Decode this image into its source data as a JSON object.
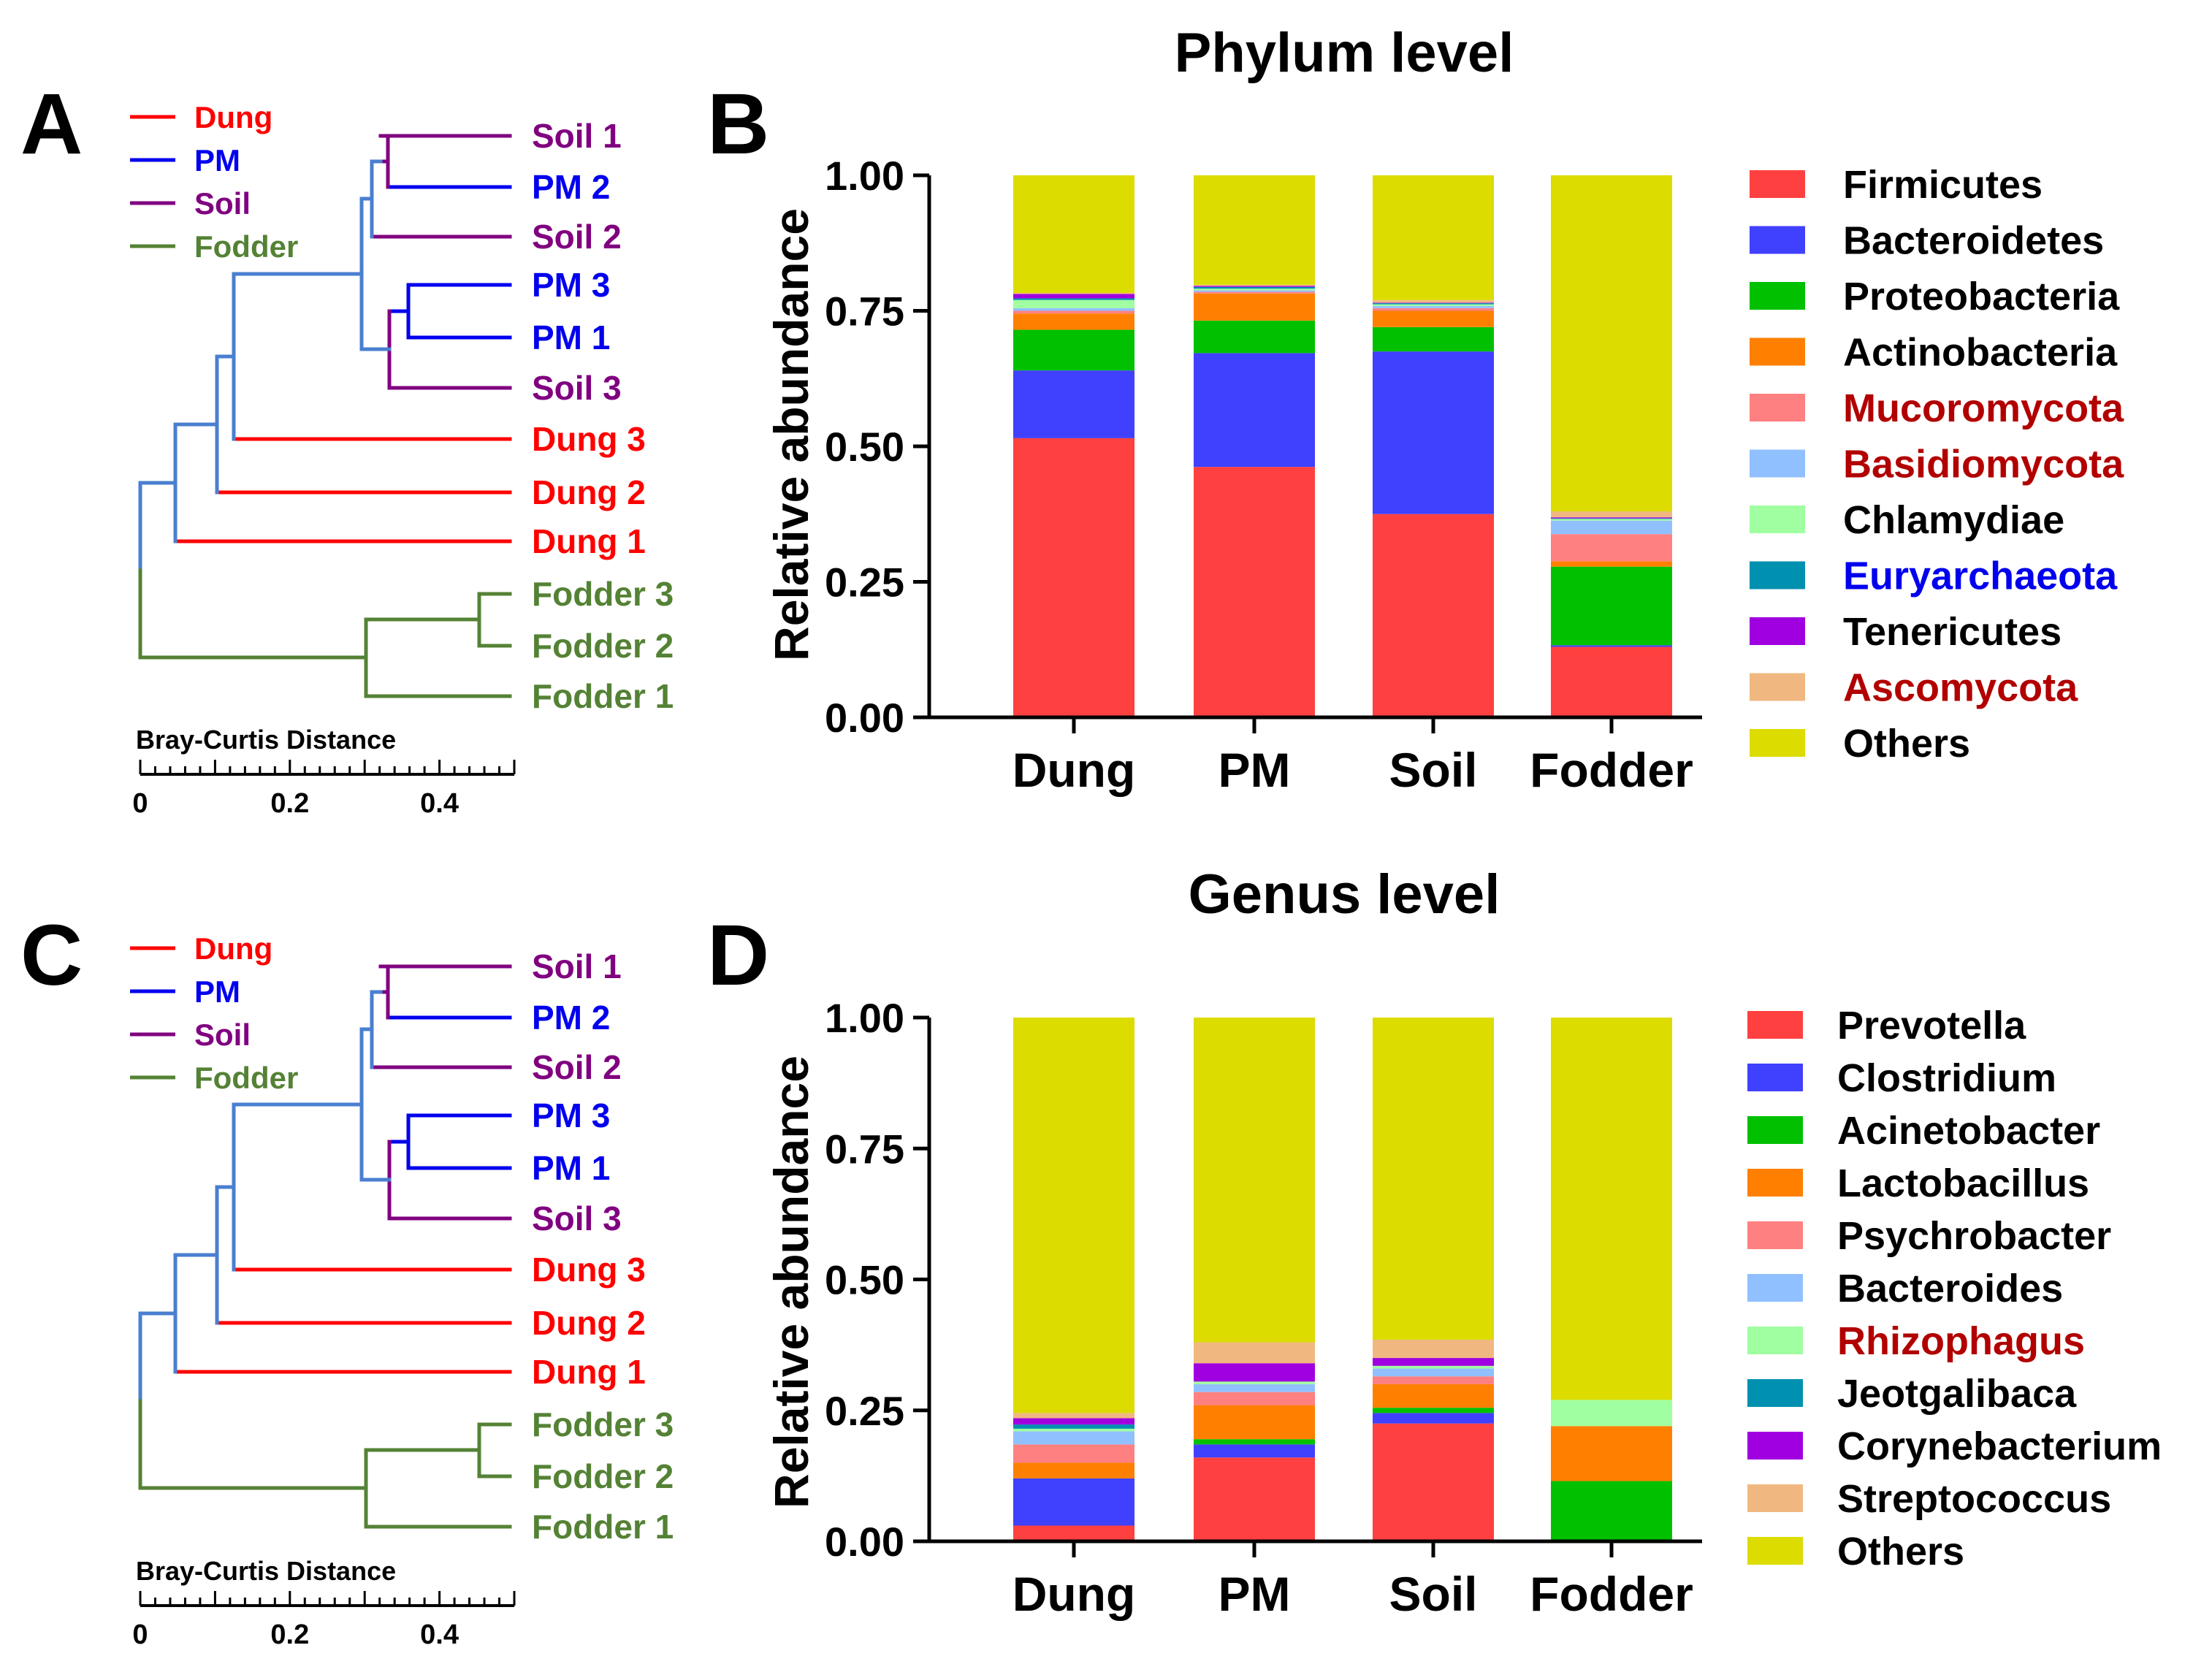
{
  "panels": {
    "A": "A",
    "B": "B",
    "C": "C",
    "D": "D"
  },
  "dendrogram": {
    "group_key": [
      {
        "label": "Dung",
        "color": "#ff0000"
      },
      {
        "label": "PM",
        "color": "#0000ee"
      },
      {
        "label": "Soil",
        "color": "#800080"
      },
      {
        "label": "Fodder",
        "color": "#548235"
      }
    ],
    "leaves": [
      {
        "label": "Soil 1",
        "color": "#800080"
      },
      {
        "label": "PM 2",
        "color": "#0000ee"
      },
      {
        "label": "Soil 2",
        "color": "#800080"
      },
      {
        "label": "PM 3",
        "color": "#0000ee"
      },
      {
        "label": "PM 1",
        "color": "#0000ee"
      },
      {
        "label": "Soil 3",
        "color": "#800080"
      },
      {
        "label": "Dung 3",
        "color": "#ff0000"
      },
      {
        "label": "Dung 2",
        "color": "#ff0000"
      },
      {
        "label": "Dung 1",
        "color": "#ff0000"
      },
      {
        "label": "Fodder 3",
        "color": "#548235"
      },
      {
        "label": "Fodder 2",
        "color": "#548235"
      },
      {
        "label": "Fodder 1",
        "color": "#548235"
      }
    ],
    "scale_title": "Bray-Curtis Distance",
    "scale_ticks": [
      "0",
      "0.2",
      "0.4"
    ],
    "scale_max": 0.5
  },
  "chart_data": [
    {
      "type": "bar",
      "stacked": true,
      "title": "Phylum level",
      "xlabel": "",
      "ylabel": "Relative abundance",
      "ylim": [
        0,
        1
      ],
      "yticks": [
        "0.00",
        "0.25",
        "0.50",
        "0.75",
        "1.00"
      ],
      "categories": [
        "Dung",
        "PM",
        "Soil",
        "Fodder"
      ],
      "series": [
        {
          "name": "Firmicutes",
          "color": "#ff4040",
          "label_color": "#000000",
          "values": [
            0.515,
            0.462,
            0.375,
            0.13
          ]
        },
        {
          "name": "Bacteroidetes",
          "color": "#4040ff",
          "label_color": "#000000",
          "values": [
            0.125,
            0.21,
            0.3,
            0.003
          ]
        },
        {
          "name": "Proteobacteria",
          "color": "#00c000",
          "label_color": "#000000",
          "values": [
            0.075,
            0.06,
            0.045,
            0.145
          ]
        },
        {
          "name": "Actinobacteria",
          "color": "#ff8000",
          "label_color": "#000000",
          "values": [
            0.03,
            0.05,
            0.03,
            0.01
          ]
        },
        {
          "name": "Mucoromycota",
          "color": "#ff8080",
          "label_color": "#b20000",
          "values": [
            0.005,
            0.003,
            0.005,
            0.05
          ]
        },
        {
          "name": "Basidiomycota",
          "color": "#90c0ff",
          "label_color": "#b20000",
          "values": [
            0.005,
            0.003,
            0.004,
            0.025
          ]
        },
        {
          "name": "Chlamydiae",
          "color": "#a0ffa0",
          "label_color": "#000000",
          "values": [
            0.015,
            0.003,
            0.003,
            0.003
          ]
        },
        {
          "name": "Euryarchaeota",
          "color": "#0090b0",
          "label_color": "#0000ee",
          "values": [
            0.003,
            0.003,
            0.002,
            0.001
          ]
        },
        {
          "name": "Tenericutes",
          "color": "#a000e0",
          "label_color": "#000000",
          "values": [
            0.008,
            0.002,
            0.001,
            0.002
          ]
        },
        {
          "name": "Ascomycota",
          "color": "#f0b880",
          "label_color": "#b20000",
          "values": [
            0.002,
            0.002,
            0.005,
            0.011
          ]
        },
        {
          "name": "Others",
          "color": "#dcdc00",
          "label_color": "#000000",
          "values": [
            0.217,
            0.202,
            0.23,
            0.62
          ]
        }
      ]
    },
    {
      "type": "bar",
      "stacked": true,
      "title": "Genus level",
      "xlabel": "",
      "ylabel": "Relative abundance",
      "ylim": [
        0,
        1
      ],
      "yticks": [
        "0.00",
        "0.25",
        "0.50",
        "0.75",
        "1.00"
      ],
      "categories": [
        "Dung",
        "PM",
        "Soil",
        "Fodder"
      ],
      "series": [
        {
          "name": "Prevotella",
          "color": "#ff4040",
          "label_color": "#000000",
          "values": [
            0.03,
            0.16,
            0.225,
            0.0
          ]
        },
        {
          "name": "Clostridium",
          "color": "#4040ff",
          "label_color": "#000000",
          "values": [
            0.09,
            0.025,
            0.02,
            0.0
          ]
        },
        {
          "name": "Acinetobacter",
          "color": "#00c000",
          "label_color": "#000000",
          "values": [
            0.0,
            0.01,
            0.01,
            0.115
          ]
        },
        {
          "name": "Lactobacillus",
          "color": "#ff8000",
          "label_color": "#000000",
          "values": [
            0.03,
            0.065,
            0.045,
            0.105
          ]
        },
        {
          "name": "Psychrobacter",
          "color": "#ff8080",
          "label_color": "#000000",
          "values": [
            0.035,
            0.025,
            0.015,
            0.0
          ]
        },
        {
          "name": "Bacteroides",
          "color": "#90c0ff",
          "label_color": "#000000",
          "values": [
            0.025,
            0.015,
            0.015,
            0.0
          ]
        },
        {
          "name": "Rhizophagus",
          "color": "#a0ffa0",
          "label_color": "#b20000",
          "values": [
            0.005,
            0.005,
            0.005,
            0.05
          ]
        },
        {
          "name": "Jeotgalibaca",
          "color": "#0090b0",
          "label_color": "#000000",
          "values": [
            0.008,
            0.0,
            0.0,
            0.0
          ]
        },
        {
          "name": "Corynebacterium",
          "color": "#a000e0",
          "label_color": "#000000",
          "values": [
            0.012,
            0.035,
            0.015,
            0.0
          ]
        },
        {
          "name": "Streptococcus",
          "color": "#f0b880",
          "label_color": "#000000",
          "values": [
            0.01,
            0.04,
            0.035,
            0.0
          ]
        },
        {
          "name": "Others",
          "color": "#dcdc00",
          "label_color": "#000000",
          "values": [
            0.755,
            0.62,
            0.615,
            0.73
          ]
        }
      ]
    }
  ]
}
